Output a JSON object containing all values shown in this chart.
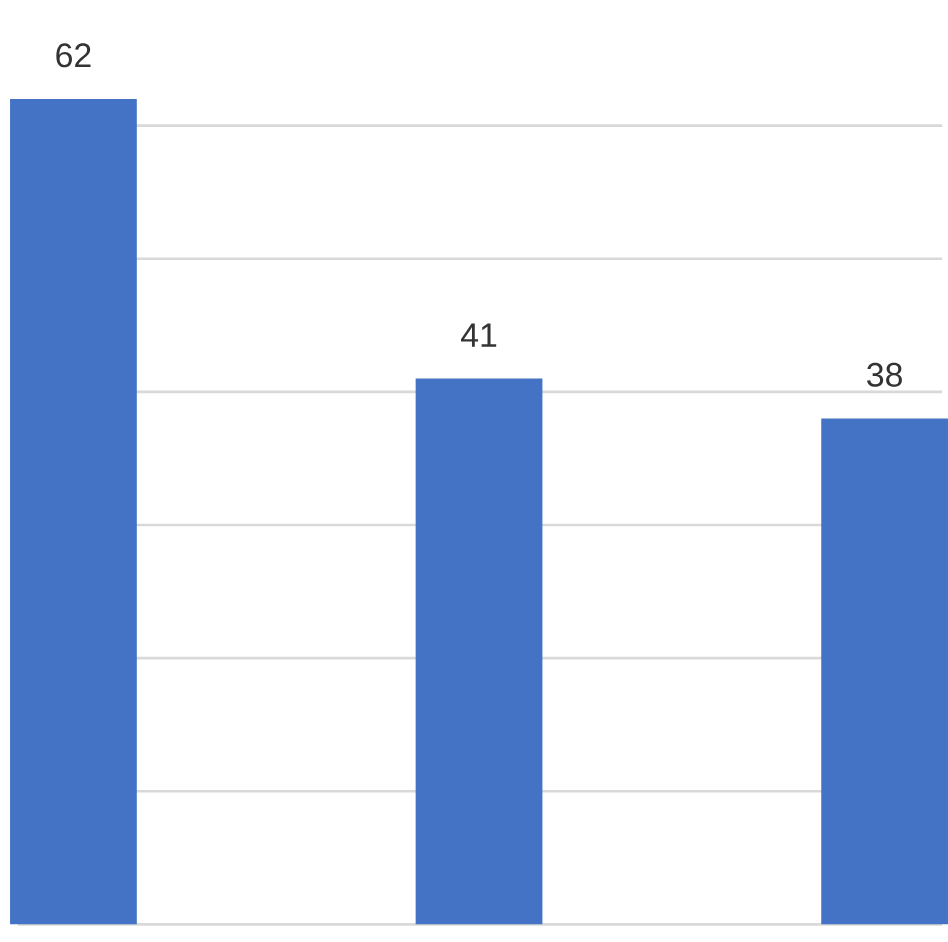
{
  "chart_data": {
    "type": "bar",
    "categories": [
      null,
      null,
      null
    ],
    "values": [
      62,
      41,
      38
    ],
    "color": "#4472c4",
    "data_labels": true,
    "grid": "y",
    "tick_labels": false
  }
}
